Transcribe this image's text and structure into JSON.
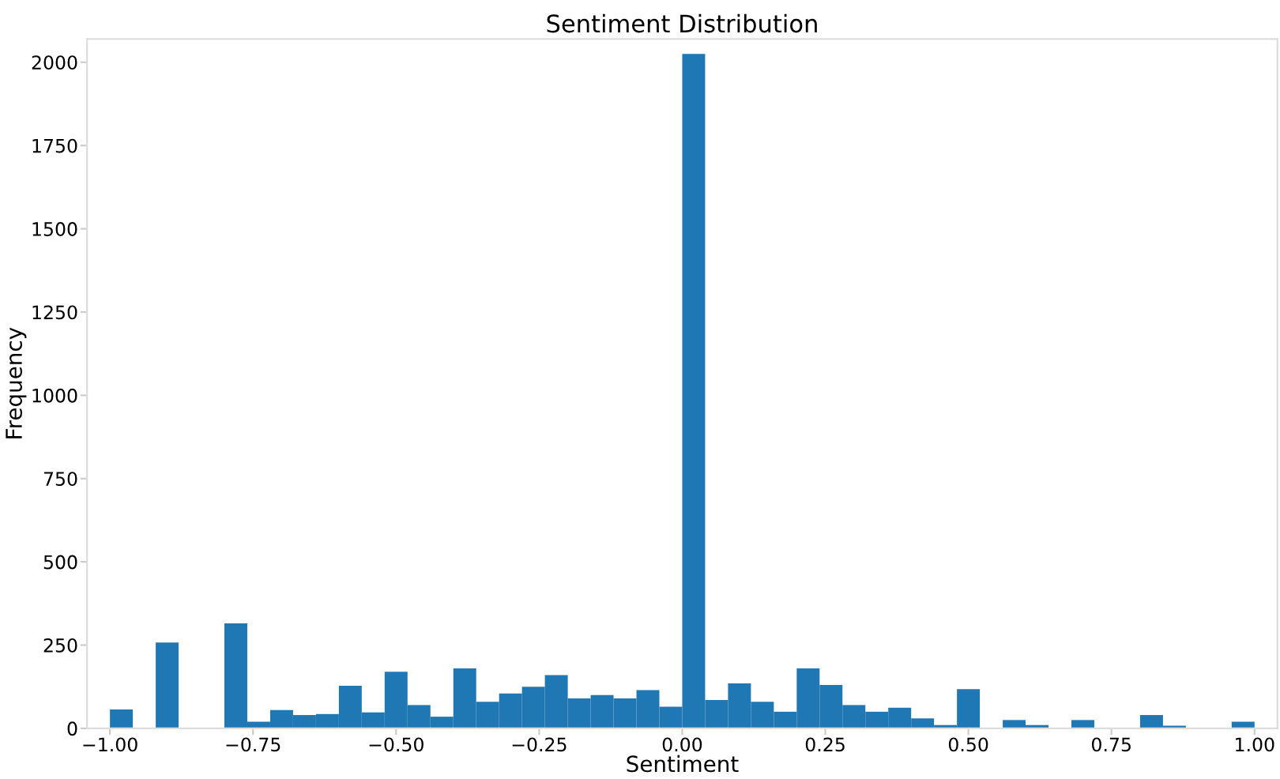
{
  "chart_data": {
    "type": "histogram",
    "title": "Sentiment Distribution",
    "xlabel": "Sentiment",
    "ylabel": "Frequency",
    "color": "#1f77b4",
    "bins": [
      -1.0,
      -0.96,
      -0.92,
      -0.88,
      -0.84,
      -0.8,
      -0.76,
      -0.72,
      -0.68,
      -0.64,
      -0.6,
      -0.56,
      -0.52,
      -0.48,
      -0.44,
      -0.4,
      -0.36,
      -0.32,
      -0.28,
      -0.24,
      -0.2,
      -0.16,
      -0.12,
      -0.08,
      -0.04,
      0.0,
      0.04,
      0.08,
      0.12,
      0.16,
      0.2,
      0.24,
      0.28,
      0.32,
      0.36,
      0.4,
      0.44,
      0.48,
      0.52,
      0.56,
      0.6,
      0.64,
      0.68,
      0.72,
      0.76,
      0.8,
      0.84,
      0.88,
      0.92,
      0.96,
      1.0
    ],
    "values": [
      57,
      null,
      258,
      null,
      2,
      315,
      20,
      55,
      40,
      43,
      128,
      48,
      170,
      70,
      35,
      180,
      80,
      105,
      125,
      160,
      90,
      100,
      90,
      115,
      65,
      2025,
      85,
      135,
      80,
      50,
      180,
      130,
      70,
      50,
      62,
      30,
      10,
      118,
      null,
      25,
      10,
      null,
      25,
      null,
      2,
      40,
      8,
      2,
      2,
      20
    ],
    "xlim": [
      -1.04,
      1.04
    ],
    "ylim": [
      0,
      2070
    ],
    "xticks": [
      {
        "value": -1.0,
        "label": "−1.00"
      },
      {
        "value": -0.75,
        "label": "−0.75"
      },
      {
        "value": -0.5,
        "label": "−0.50"
      },
      {
        "value": -0.25,
        "label": "−0.25"
      },
      {
        "value": 0.0,
        "label": "0.00"
      },
      {
        "value": 0.25,
        "label": "0.25"
      },
      {
        "value": 0.5,
        "label": "0.50"
      },
      {
        "value": 0.75,
        "label": "0.75"
      },
      {
        "value": 1.0,
        "label": "1.00"
      }
    ],
    "yticks": [
      0,
      250,
      500,
      750,
      1000,
      1250,
      1500,
      1750,
      2000
    ],
    "grid": false
  }
}
